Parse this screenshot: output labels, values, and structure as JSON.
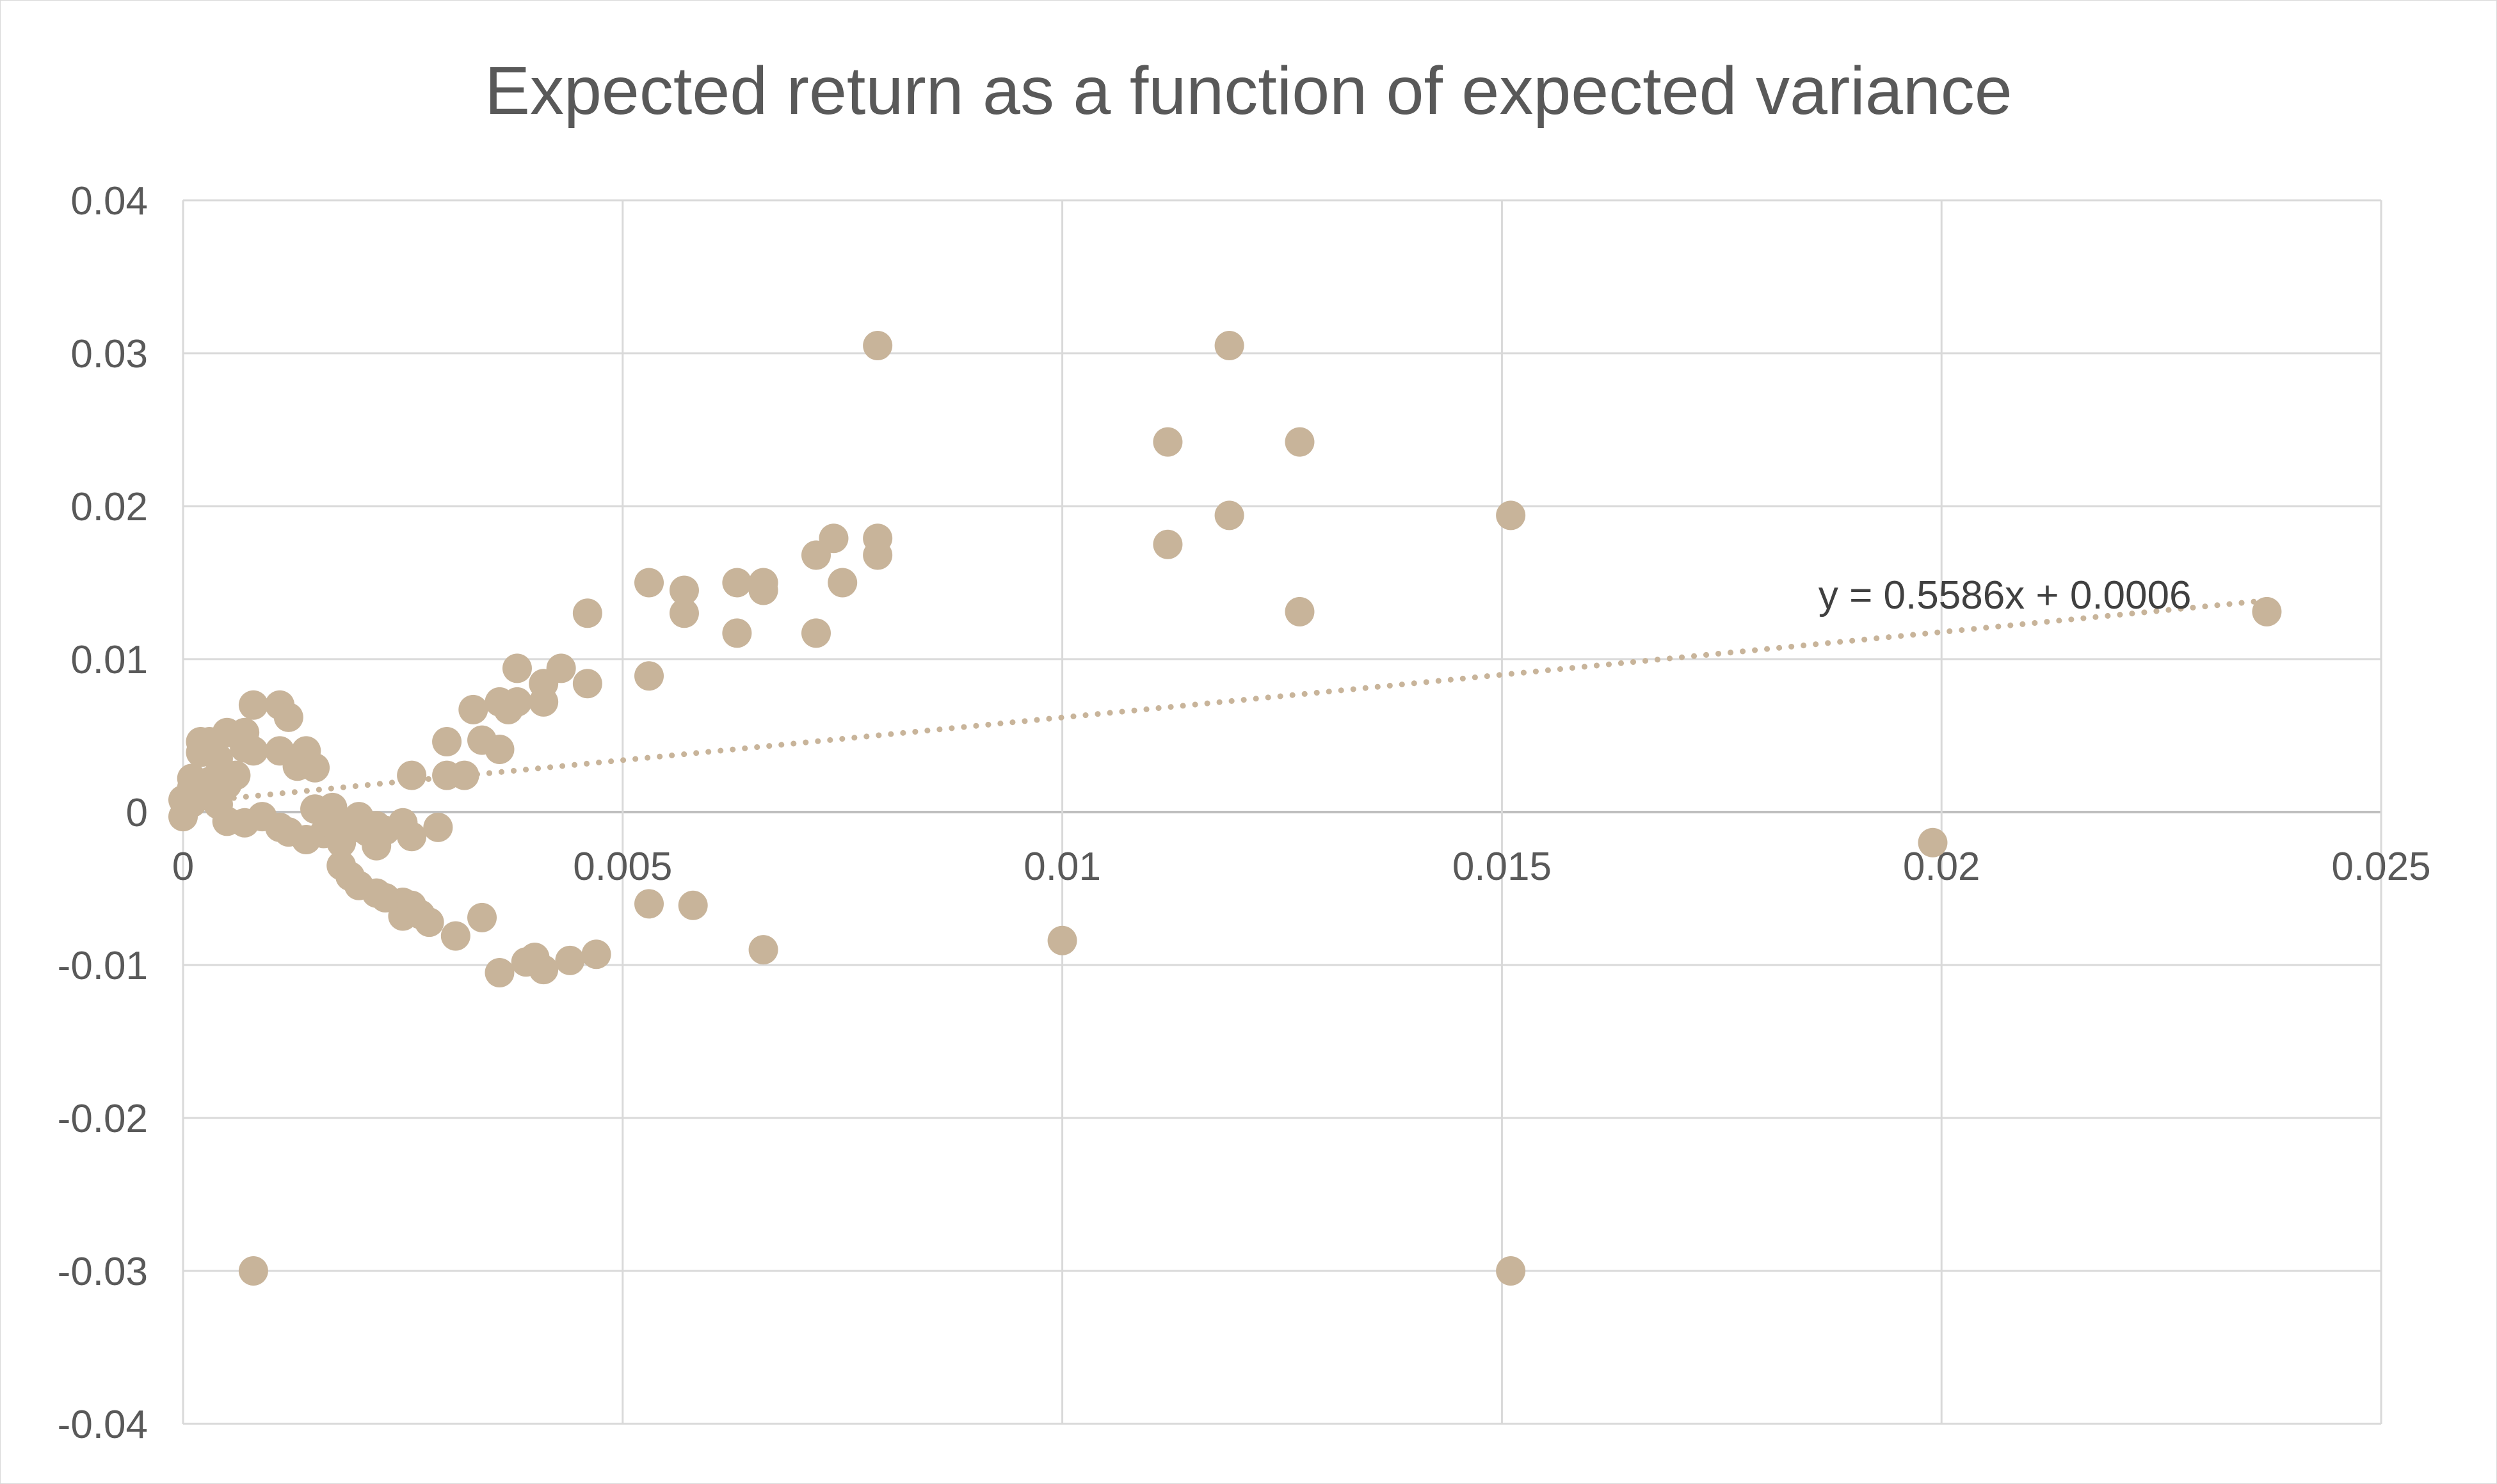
{
  "chart_data": {
    "type": "scatter",
    "title": "Expected return as a function of expected variance",
    "xlabel": "",
    "ylabel": "",
    "xlim": [
      0,
      0.025
    ],
    "ylim": [
      -0.04,
      0.04
    ],
    "x_ticks": [
      "0",
      "0.005",
      "0.01",
      "0.015",
      "0.02",
      "0.025"
    ],
    "y_ticks": [
      "0.04",
      "0.03",
      "0.02",
      "0.01",
      "0",
      "-0.01",
      "-0.02",
      "-0.03",
      "-0.04"
    ],
    "grid": true,
    "legend": "none",
    "marker_color": "#c8b49a",
    "trendline": {
      "type": "linear",
      "slope": 0.5586,
      "intercept": 0.0006,
      "x_range": [
        0.0003,
        0.0237
      ],
      "label": "y = 0.5586x + 0.0006",
      "color": "#c8b49a",
      "style": "dotted"
    },
    "points": [
      [
        0.0079,
        0.0305
      ],
      [
        0.0119,
        0.0305
      ],
      [
        0.0112,
        0.0242
      ],
      [
        0.0127,
        0.0242
      ],
      [
        0.0119,
        0.0194
      ],
      [
        0.0151,
        0.0194
      ],
      [
        0.0112,
        0.0175
      ],
      [
        0.0127,
        0.0131
      ],
      [
        0.0237,
        0.0131
      ],
      [
        0.0199,
        -0.002
      ],
      [
        0.01,
        -0.0084
      ],
      [
        0.0151,
        -0.03
      ],
      [
        0.0008,
        -0.03
      ],
      [
        0.0074,
        0.0179
      ],
      [
        0.0079,
        0.0179
      ],
      [
        0.0079,
        0.0168
      ],
      [
        0.0072,
        0.0168
      ],
      [
        0.0075,
        0.015
      ],
      [
        0.0072,
        0.0117
      ],
      [
        0.0053,
        0.015
      ],
      [
        0.0057,
        0.0145
      ],
      [
        0.0057,
        0.013
      ],
      [
        0.0063,
        0.015
      ],
      [
        0.0066,
        0.015
      ],
      [
        0.0066,
        0.0145
      ],
      [
        0.0063,
        0.0117
      ],
      [
        0.0046,
        0.013
      ],
      [
        0.0053,
        0.0089
      ],
      [
        0.0038,
        0.0094
      ],
      [
        0.0043,
        0.0094
      ],
      [
        0.0041,
        0.0084
      ],
      [
        0.0046,
        0.0084
      ],
      [
        0.0036,
        0.0072
      ],
      [
        0.0038,
        0.0072
      ],
      [
        0.0041,
        0.0072
      ],
      [
        0.0037,
        0.0067
      ],
      [
        0.0033,
        0.0067
      ],
      [
        0.0036,
        0.0041
      ],
      [
        0.0034,
        0.0047
      ],
      [
        0.003,
        0.0046
      ],
      [
        0.003,
        0.0024
      ],
      [
        0.0032,
        0.0024
      ],
      [
        0.0026,
        0.0024
      ],
      [
        0.0029,
        -0.001
      ],
      [
        0.0008,
        0.007
      ],
      [
        0.0011,
        0.007
      ],
      [
        0.0012,
        0.0062
      ],
      [
        0.0005,
        0.0052
      ],
      [
        0.0007,
        0.0052
      ],
      [
        0.0002,
        0.0046
      ],
      [
        0.0003,
        0.0046
      ],
      [
        0.0002,
        0.0039
      ],
      [
        0.0004,
        0.0035
      ],
      [
        0.0007,
        0.0042
      ],
      [
        0.0008,
        0.004
      ],
      [
        0.0011,
        0.004
      ],
      [
        0.0014,
        0.004
      ],
      [
        0.0013,
        0.003
      ],
      [
        0.0015,
        0.0029
      ],
      [
        0.0001,
        0.0022
      ],
      [
        0.0001,
        0.0016
      ],
      [
        0.0002,
        0.0012
      ],
      [
        0.0,
        0.0008
      ],
      [
        0.0001,
        0.0006
      ],
      [
        0.0003,
        0.002
      ],
      [
        0.0005,
        0.0018
      ],
      [
        0.0006,
        0.0024
      ],
      [
        0.0004,
        0.0005
      ],
      [
        0.0,
        -0.0003
      ],
      [
        0.0005,
        -0.0006
      ],
      [
        0.0007,
        -0.0007
      ],
      [
        0.0009,
        -0.0003
      ],
      [
        0.0011,
        -0.001
      ],
      [
        0.0012,
        -0.0013
      ],
      [
        0.0014,
        -0.0018
      ],
      [
        0.0015,
        0.0002
      ],
      [
        0.0016,
        -0.0014
      ],
      [
        0.0017,
        -0.0008
      ],
      [
        0.0018,
        -0.002
      ],
      [
        0.0019,
        -0.0011
      ],
      [
        0.002,
        -0.0003
      ],
      [
        0.0021,
        -0.0013
      ],
      [
        0.0022,
        -0.0009
      ],
      [
        0.0022,
        -0.0022
      ],
      [
        0.0023,
        -0.0012
      ],
      [
        0.0025,
        -0.0007
      ],
      [
        0.0026,
        -0.0016
      ],
      [
        0.0017,
        0.0003
      ],
      [
        0.0018,
        -0.0035
      ],
      [
        0.0019,
        -0.0042
      ],
      [
        0.002,
        -0.0048
      ],
      [
        0.0022,
        -0.0053
      ],
      [
        0.0023,
        -0.0056
      ],
      [
        0.0025,
        -0.0059
      ],
      [
        0.0025,
        -0.0068
      ],
      [
        0.0026,
        -0.0061
      ],
      [
        0.0027,
        -0.0067
      ],
      [
        0.0028,
        -0.0072
      ],
      [
        0.0031,
        -0.0081
      ],
      [
        0.0034,
        -0.0069
      ],
      [
        0.0036,
        -0.0105
      ],
      [
        0.0039,
        -0.0098
      ],
      [
        0.004,
        -0.0095
      ],
      [
        0.0041,
        -0.0103
      ],
      [
        0.0044,
        -0.0097
      ],
      [
        0.0047,
        -0.0093
      ],
      [
        0.0053,
        -0.006
      ],
      [
        0.0058,
        -0.0061
      ],
      [
        0.0066,
        -0.009
      ]
    ]
  }
}
